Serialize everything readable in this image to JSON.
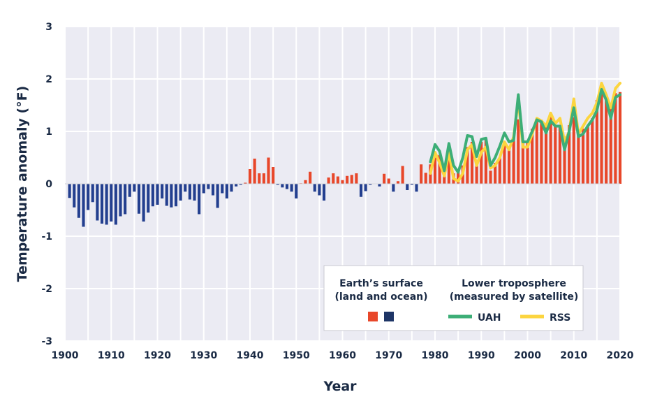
{
  "chart_data": {
    "type": "bar",
    "xlabel": "Year",
    "ylabel": "Temperature anomaly (°F)",
    "xlim": [
      1900,
      2020
    ],
    "ylim": [
      -3,
      3
    ],
    "x_ticks": [
      1900,
      1910,
      1920,
      1930,
      1940,
      1950,
      1960,
      1970,
      1980,
      1990,
      2000,
      2010,
      2020
    ],
    "y_ticks": [
      -3,
      -2,
      -1,
      0,
      1,
      2,
      3
    ],
    "grid": true,
    "colors": {
      "positive": "#e8472a",
      "negative": "#233f8f",
      "uah": "#3dae77",
      "rss": "#fcd53f",
      "grid": "#cfcfcf"
    },
    "surface": {
      "years": [
        1901,
        1902,
        1903,
        1904,
        1905,
        1906,
        1907,
        1908,
        1909,
        1910,
        1911,
        1912,
        1913,
        1914,
        1915,
        1916,
        1917,
        1918,
        1919,
        1920,
        1921,
        1922,
        1923,
        1924,
        1925,
        1926,
        1927,
        1928,
        1929,
        1930,
        1931,
        1932,
        1933,
        1934,
        1935,
        1936,
        1937,
        1938,
        1939,
        1940,
        1941,
        1942,
        1943,
        1944,
        1945,
        1946,
        1947,
        1948,
        1949,
        1950,
        1951,
        1952,
        1953,
        1954,
        1955,
        1956,
        1957,
        1958,
        1959,
        1960,
        1961,
        1962,
        1963,
        1964,
        1965,
        1966,
        1967,
        1968,
        1969,
        1970,
        1971,
        1972,
        1973,
        1974,
        1975,
        1976,
        1977,
        1978,
        1979,
        1980,
        1981,
        1982,
        1983,
        1984,
        1985,
        1986,
        1987,
        1988,
        1989,
        1990,
        1991,
        1992,
        1993,
        1994,
        1995,
        1996,
        1997,
        1998,
        1999,
        2000,
        2001,
        2002,
        2003,
        2004,
        2005,
        2006,
        2007,
        2008,
        2009,
        2010,
        2011,
        2012,
        2013,
        2014,
        2015,
        2016,
        2017,
        2018,
        2019,
        2020
      ],
      "values": [
        -0.27,
        -0.45,
        -0.65,
        -0.82,
        -0.5,
        -0.35,
        -0.7,
        -0.76,
        -0.78,
        -0.72,
        -0.78,
        -0.62,
        -0.58,
        -0.25,
        -0.15,
        -0.57,
        -0.72,
        -0.55,
        -0.43,
        -0.4,
        -0.28,
        -0.42,
        -0.45,
        -0.43,
        -0.32,
        -0.15,
        -0.3,
        -0.32,
        -0.58,
        -0.18,
        -0.1,
        -0.22,
        -0.46,
        -0.18,
        -0.28,
        -0.15,
        -0.05,
        -0.02,
        0.02,
        0.28,
        0.48,
        0.2,
        0.2,
        0.5,
        0.32,
        -0.02,
        -0.07,
        -0.1,
        -0.15,
        -0.28,
        0.01,
        0.07,
        0.23,
        -0.15,
        -0.22,
        -0.32,
        0.12,
        0.2,
        0.14,
        0.07,
        0.15,
        0.17,
        0.2,
        -0.25,
        -0.14,
        -0.02,
        0.0,
        -0.05,
        0.19,
        0.1,
        -0.15,
        0.05,
        0.34,
        -0.12,
        -0.02,
        -0.15,
        0.37,
        0.21,
        0.37,
        0.5,
        0.55,
        0.3,
        0.65,
        0.2,
        0.25,
        0.35,
        0.7,
        0.8,
        0.45,
        0.8,
        0.85,
        0.25,
        0.4,
        0.5,
        0.8,
        0.68,
        0.82,
        1.23,
        0.83,
        0.8,
        1.05,
        1.22,
        1.22,
        1.12,
        1.3,
        1.1,
        1.08,
        0.9,
        1.12,
        1.27,
        0.95,
        1.05,
        1.1,
        1.25,
        1.6,
        1.8,
        1.6,
        1.45,
        1.73,
        1.75
      ]
    },
    "series": [
      {
        "name": "UAH",
        "x": [
          1979,
          1980,
          1981,
          1982,
          1983,
          1984,
          1985,
          1986,
          1987,
          1988,
          1989,
          1990,
          1991,
          1992,
          1993,
          1994,
          1995,
          1996,
          1997,
          1998,
          1999,
          2000,
          2001,
          2002,
          2003,
          2004,
          2005,
          2006,
          2007,
          2008,
          2009,
          2010,
          2011,
          2012,
          2013,
          2014,
          2015,
          2016,
          2017,
          2018,
          2019,
          2020
        ],
        "values": [
          0.42,
          0.75,
          0.62,
          0.25,
          0.77,
          0.35,
          0.22,
          0.5,
          0.92,
          0.9,
          0.52,
          0.85,
          0.87,
          0.35,
          0.5,
          0.72,
          0.97,
          0.8,
          0.83,
          1.7,
          0.8,
          0.8,
          1.0,
          1.22,
          1.18,
          0.97,
          1.2,
          1.1,
          1.1,
          0.65,
          1.0,
          1.45,
          0.9,
          0.95,
          1.1,
          1.22,
          1.4,
          1.8,
          1.6,
          1.25,
          1.65,
          1.7
        ]
      },
      {
        "name": "RSS",
        "x": [
          1979,
          1980,
          1981,
          1982,
          1983,
          1984,
          1985,
          1986,
          1987,
          1988,
          1989,
          1990,
          1991,
          1992,
          1993,
          1994,
          1995,
          1996,
          1997,
          1998,
          1999,
          2000,
          2001,
          2002,
          2003,
          2004,
          2005,
          2006,
          2007,
          2008,
          2009,
          2010,
          2011,
          2012,
          2013,
          2014,
          2015,
          2016,
          2017,
          2018,
          2019,
          2020
        ],
        "values": [
          0.2,
          0.6,
          0.4,
          0.15,
          0.6,
          0.1,
          0.05,
          0.2,
          0.65,
          0.75,
          0.35,
          0.6,
          0.7,
          0.3,
          0.35,
          0.5,
          0.8,
          0.65,
          0.9,
          1.6,
          0.7,
          0.7,
          0.95,
          1.25,
          1.2,
          1.1,
          1.35,
          1.15,
          1.25,
          0.8,
          1.0,
          1.62,
          0.95,
          1.1,
          1.25,
          1.35,
          1.55,
          1.92,
          1.7,
          1.45,
          1.82,
          1.92
        ]
      }
    ],
    "legend": {
      "placement": "bottom-right",
      "surface_line1": "Earth’s surface",
      "surface_line2": "(land and ocean)",
      "tropo_line1": "Lower troposphere",
      "tropo_line2": "(measured by satellite)",
      "uah_label": "UAH",
      "rss_label": "RSS"
    }
  }
}
